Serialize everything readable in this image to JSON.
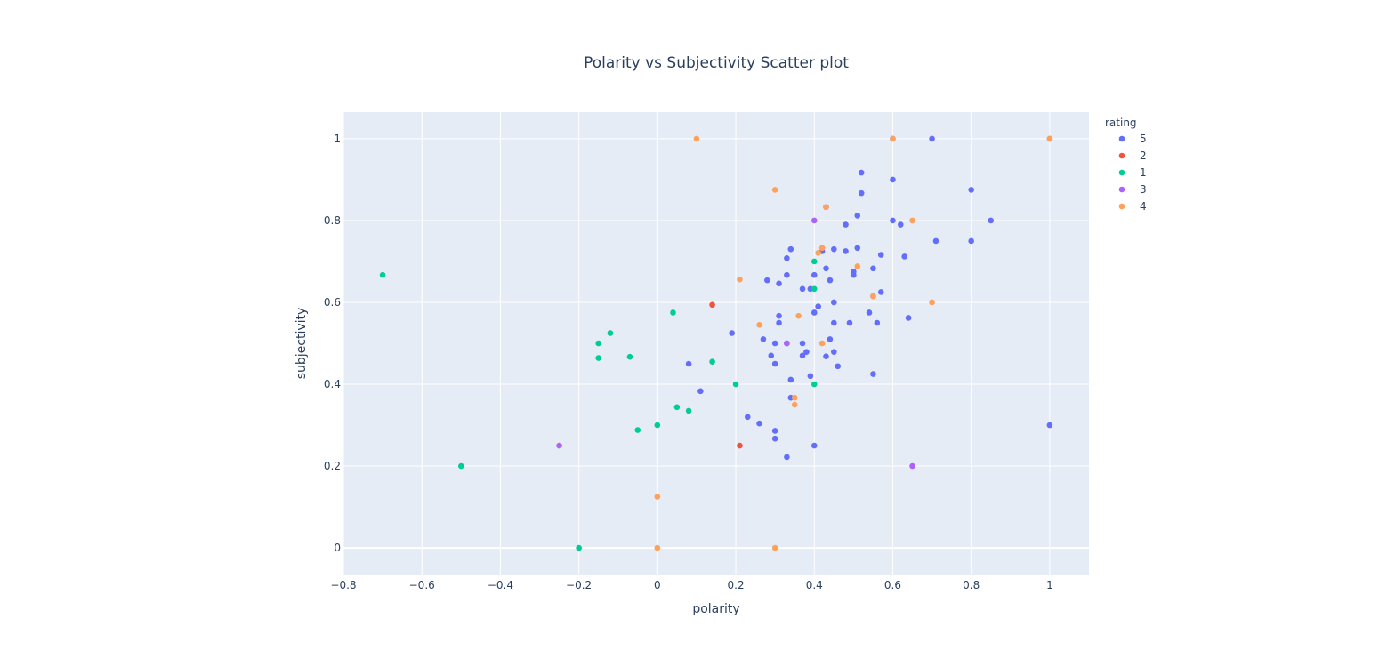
{
  "chart_data": {
    "type": "scatter",
    "title": "Polarity vs Subjectivity Scatter plot",
    "xlabel": "polarity",
    "ylabel": "subjectivity",
    "xlim": [
      -0.8,
      1.1
    ],
    "ylim": [
      -0.065,
      1.065
    ],
    "x_ticks": [
      -0.8,
      -0.6,
      -0.4,
      -0.2,
      0,
      0.2,
      0.4,
      0.6,
      0.8,
      1
    ],
    "x_tick_labels": [
      "−0.8",
      "−0.6",
      "−0.4",
      "−0.2",
      "0",
      "0.2",
      "0.4",
      "0.6",
      "0.8",
      "1"
    ],
    "y_ticks": [
      0,
      0.2,
      0.4,
      0.6,
      0.8,
      1
    ],
    "y_tick_labels": [
      "0",
      "0.2",
      "0.4",
      "0.6",
      "0.8",
      "1"
    ],
    "grid": true,
    "legend_title": "rating",
    "legend_position": "top-right",
    "series": [
      {
        "name": "5",
        "color": "#636efa",
        "points": [
          [
            0.6,
            1.0
          ],
          [
            0.7,
            1.0
          ],
          [
            1.0,
            1.0
          ],
          [
            0.52,
            0.917
          ],
          [
            0.6,
            0.9
          ],
          [
            0.8,
            0.875
          ],
          [
            0.52,
            0.867
          ],
          [
            0.43,
            0.833
          ],
          [
            0.51,
            0.812
          ],
          [
            0.6,
            0.8
          ],
          [
            0.85,
            0.8
          ],
          [
            0.62,
            0.79
          ],
          [
            0.48,
            0.79
          ],
          [
            0.71,
            0.75
          ],
          [
            0.8,
            0.75
          ],
          [
            0.34,
            0.73
          ],
          [
            0.45,
            0.73
          ],
          [
            0.51,
            0.733
          ],
          [
            0.42,
            0.725
          ],
          [
            0.48,
            0.725
          ],
          [
            0.57,
            0.716
          ],
          [
            0.63,
            0.712
          ],
          [
            0.33,
            0.708
          ],
          [
            0.43,
            0.683
          ],
          [
            0.55,
            0.683
          ],
          [
            0.5,
            0.675
          ],
          [
            0.33,
            0.667
          ],
          [
            0.4,
            0.667
          ],
          [
            0.5,
            0.667
          ],
          [
            0.28,
            0.654
          ],
          [
            0.44,
            0.654
          ],
          [
            0.31,
            0.646
          ],
          [
            0.37,
            0.633
          ],
          [
            0.39,
            0.633
          ],
          [
            0.57,
            0.625
          ],
          [
            0.55,
            0.615
          ],
          [
            0.45,
            0.6
          ],
          [
            0.41,
            0.59
          ],
          [
            0.4,
            0.575
          ],
          [
            0.54,
            0.575
          ],
          [
            0.31,
            0.567
          ],
          [
            0.64,
            0.562
          ],
          [
            0.31,
            0.55
          ],
          [
            0.45,
            0.55
          ],
          [
            0.49,
            0.55
          ],
          [
            0.56,
            0.55
          ],
          [
            0.19,
            0.525
          ],
          [
            0.27,
            0.51
          ],
          [
            0.44,
            0.51
          ],
          [
            0.3,
            0.5
          ],
          [
            0.33,
            0.5
          ],
          [
            0.37,
            0.5
          ],
          [
            0.38,
            0.479
          ],
          [
            0.45,
            0.479
          ],
          [
            0.29,
            0.47
          ],
          [
            0.37,
            0.47
          ],
          [
            0.43,
            0.468
          ],
          [
            0.08,
            0.45
          ],
          [
            0.3,
            0.45
          ],
          [
            0.46,
            0.444
          ],
          [
            0.55,
            0.425
          ],
          [
            0.39,
            0.42
          ],
          [
            0.34,
            0.411
          ],
          [
            0.11,
            0.383
          ],
          [
            0.34,
            0.367
          ],
          [
            0.23,
            0.32
          ],
          [
            0.26,
            0.304
          ],
          [
            0.3,
            0.286
          ],
          [
            0.3,
            0.267
          ],
          [
            0.4,
            0.25
          ],
          [
            0.33,
            0.222
          ],
          [
            1.0,
            0.3
          ]
        ]
      },
      {
        "name": "2",
        "color": "#ef553b",
        "points": [
          [
            0.14,
            0.594
          ],
          [
            0.21,
            0.25
          ]
        ]
      },
      {
        "name": "1",
        "color": "#00cc96",
        "points": [
          [
            -0.7,
            0.667
          ],
          [
            0.4,
            0.7
          ],
          [
            0.4,
            0.633
          ],
          [
            0.04,
            0.575
          ],
          [
            -0.12,
            0.525
          ],
          [
            -0.15,
            0.5
          ],
          [
            -0.15,
            0.464
          ],
          [
            -0.07,
            0.467
          ],
          [
            0.14,
            0.455
          ],
          [
            0.2,
            0.4
          ],
          [
            0.4,
            0.4
          ],
          [
            0.05,
            0.344
          ],
          [
            0.08,
            0.335
          ],
          [
            0.0,
            0.3
          ],
          [
            -0.05,
            0.288
          ],
          [
            -0.5,
            0.2
          ],
          [
            -0.2,
            0.0
          ]
        ]
      },
      {
        "name": "3",
        "color": "#ab63fa",
        "points": [
          [
            0.4,
            0.8
          ],
          [
            0.33,
            0.5
          ],
          [
            -0.25,
            0.25
          ],
          [
            0.65,
            0.2
          ]
        ]
      },
      {
        "name": "4",
        "color": "#ffa15a",
        "points": [
          [
            0.1,
            1.0
          ],
          [
            0.6,
            1.0
          ],
          [
            1.0,
            1.0
          ],
          [
            0.3,
            0.875
          ],
          [
            0.43,
            0.833
          ],
          [
            0.65,
            0.8
          ],
          [
            0.42,
            0.733
          ],
          [
            0.41,
            0.721
          ],
          [
            0.51,
            0.688
          ],
          [
            0.21,
            0.656
          ],
          [
            0.55,
            0.615
          ],
          [
            0.7,
            0.6
          ],
          [
            0.36,
            0.567
          ],
          [
            0.26,
            0.545
          ],
          [
            0.42,
            0.5
          ],
          [
            0.35,
            0.367
          ],
          [
            0.35,
            0.35
          ],
          [
            0.0,
            0.125
          ],
          [
            0.0,
            0.0
          ],
          [
            0.3,
            0.0
          ]
        ]
      }
    ]
  }
}
